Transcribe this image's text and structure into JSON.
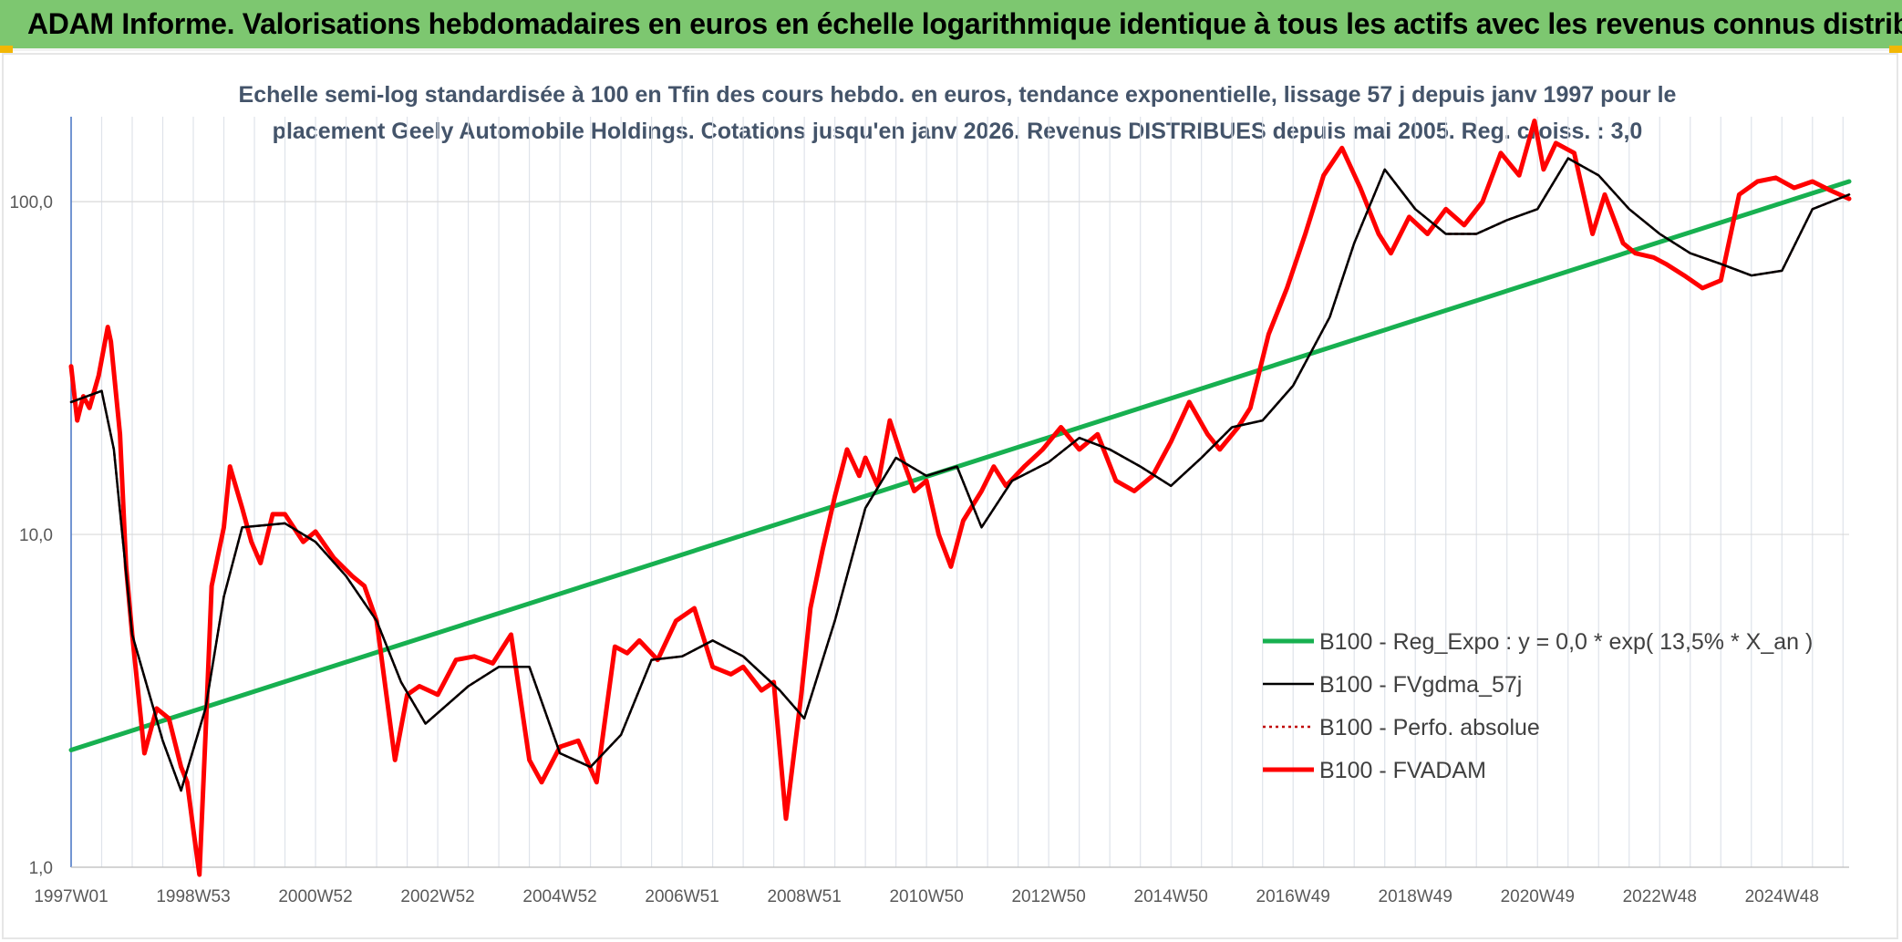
{
  "header": {
    "title": "ADAM Informe. Valorisations hebdomadaires en euros en échelle logarithmique identique à tous les actifs avec les revenus connus distribués"
  },
  "chart_data": {
    "type": "line",
    "title": "Echelle semi-log standardisée à 100 en Tfin des cours hebdo. en euros, tendance exponentielle, lissage 57 j depuis janv 1997 pour le placement Geely Automobile Holdings. Cotations jusqu'en janv 2026. Revenus DISTRIBUES depuis mai 2005. Reg. croiss. : 3,0",
    "title_lines": [
      "Echelle semi-log standardisée à 100 en Tfin des cours hebdo. en euros, tendance exponentielle, lissage 57 j depuis janv 1997 pour le",
      "placement Geely Automobile Holdings. Cotations jusqu'en janv 2026. Revenus DISTRIBUES depuis mai 2005. Reg. croiss. : 3,0"
    ],
    "y_scale": "log",
    "ylim": [
      1,
      180
    ],
    "y_ticks": [
      {
        "value": 1,
        "label": "1,0"
      },
      {
        "value": 10,
        "label": "10,0"
      },
      {
        "value": 100,
        "label": "100,0"
      }
    ],
    "xlim": [
      1997.0,
      2026.1
    ],
    "x_ticks": [
      {
        "value": 1997.0,
        "label": "1997W01"
      },
      {
        "value": 1999.0,
        "label": "1998W53"
      },
      {
        "value": 2001.0,
        "label": "2000W52"
      },
      {
        "value": 2003.0,
        "label": "2002W52"
      },
      {
        "value": 2005.0,
        "label": "2004W52"
      },
      {
        "value": 2007.0,
        "label": "2006W51"
      },
      {
        "value": 2009.0,
        "label": "2008W51"
      },
      {
        "value": 2011.0,
        "label": "2010W50"
      },
      {
        "value": 2013.0,
        "label": "2012W50"
      },
      {
        "value": 2015.0,
        "label": "2014W50"
      },
      {
        "value": 2017.0,
        "label": "2016W49"
      },
      {
        "value": 2019.0,
        "label": "2018W49"
      },
      {
        "value": 2021.0,
        "label": "2020W49"
      },
      {
        "value": 2023.0,
        "label": "2022W48"
      },
      {
        "value": 2025.0,
        "label": "2024W48"
      }
    ],
    "grid": "vertical",
    "legend_position": "bottom-right",
    "series": [
      {
        "name": "B100 - Reg_Expo : y = 0,0 * exp( 13,5% *  X_an )",
        "color": "#17b050",
        "style": "solid-thick",
        "x": [
          1997.0,
          2026.1
        ],
        "y": [
          2.25,
          115
        ]
      },
      {
        "name": "B100 - FVgdma_57j",
        "color": "#000000",
        "style": "solid-thin",
        "x": [
          1997.0,
          1997.5,
          1997.7,
          1998.0,
          1998.5,
          1998.8,
          1999.2,
          1999.5,
          1999.8,
          2000.5,
          2001.0,
          2001.5,
          2002.0,
          2002.4,
          2002.8,
          2003.5,
          2004.0,
          2004.5,
          2005.0,
          2005.5,
          2006.0,
          2006.5,
          2007.0,
          2007.5,
          2008.0,
          2008.6,
          2009.0,
          2009.5,
          2010.0,
          2010.5,
          2011.0,
          2011.5,
          2011.9,
          2012.4,
          2013.0,
          2013.5,
          2014.0,
          2014.5,
          2015.0,
          2015.5,
          2016.0,
          2016.5,
          2017.0,
          2017.6,
          2018.0,
          2018.5,
          2019.0,
          2019.5,
          2020.0,
          2020.5,
          2021.0,
          2021.5,
          2022.0,
          2022.5,
          2023.0,
          2023.5,
          2024.0,
          2024.5,
          2025.0,
          2025.5,
          2026.1
        ],
        "y": [
          25,
          27,
          18,
          5,
          2.4,
          1.7,
          3.0,
          6.5,
          10.5,
          10.8,
          9.5,
          7.5,
          5.5,
          3.6,
          2.7,
          3.5,
          4.0,
          4.0,
          2.2,
          2.0,
          2.5,
          4.2,
          4.3,
          4.8,
          4.3,
          3.4,
          2.8,
          5.5,
          12,
          17,
          15,
          16,
          10.5,
          14.5,
          16.5,
          19.5,
          18,
          16,
          14,
          17,
          21,
          22,
          28,
          45,
          75,
          125,
          95,
          80,
          80,
          88,
          95,
          135,
          120,
          95,
          80,
          70,
          65,
          60,
          62,
          95,
          105
        ]
      },
      {
        "name": "B100 - Perfo. absolue",
        "color": "#c00000",
        "style": "dotted",
        "x": [
          1997.0,
          1997.5,
          1997.7,
          1998.0,
          1998.5,
          1998.8,
          1999.2,
          1999.5,
          1999.8,
          2000.5,
          2001.0,
          2001.5,
          2002.0,
          2002.4,
          2002.8,
          2003.5,
          2004.0,
          2004.5,
          2005.0,
          2005.5,
          2006.0,
          2006.5,
          2007.0,
          2007.5,
          2008.0,
          2008.6,
          2009.0,
          2009.5,
          2010.0,
          2010.5,
          2011.0,
          2011.5,
          2011.9,
          2012.4,
          2013.0,
          2013.5,
          2014.0,
          2014.5,
          2015.0,
          2015.5,
          2016.0,
          2016.5,
          2017.0,
          2017.6,
          2018.0,
          2018.5,
          2019.0,
          2019.5,
          2020.0,
          2020.5,
          2021.0,
          2021.5,
          2022.0,
          2022.5,
          2023.0,
          2023.5,
          2024.0,
          2024.5,
          2025.0,
          2025.5,
          2026.1
        ],
        "y": [
          25,
          27,
          18,
          5,
          2.4,
          1.7,
          3.0,
          6.5,
          10.5,
          10.8,
          9.5,
          7.5,
          5.5,
          3.6,
          2.7,
          3.5,
          4.0,
          4.0,
          2.2,
          2.0,
          2.5,
          4.2,
          4.3,
          4.8,
          4.3,
          3.4,
          2.8,
          5.5,
          12,
          17,
          15,
          16,
          10.5,
          14.5,
          16.5,
          19.5,
          18,
          16,
          14,
          17,
          21,
          22,
          28,
          45,
          75,
          125,
          95,
          80,
          80,
          88,
          95,
          135,
          120,
          95,
          80,
          70,
          65,
          60,
          62,
          95,
          105
        ]
      },
      {
        "name": "B100 - FVADAM",
        "color": "#ff0000",
        "style": "solid-thick",
        "x": [
          1997.0,
          1997.1,
          1997.2,
          1997.3,
          1997.45,
          1997.6,
          1997.65,
          1997.8,
          1997.9,
          1998.0,
          1998.2,
          1998.4,
          1998.6,
          1998.8,
          1998.9,
          1999.0,
          1999.1,
          1999.2,
          1999.3,
          1999.5,
          1999.6,
          1999.8,
          1999.95,
          2000.1,
          2000.3,
          2000.5,
          2000.8,
          2001.0,
          2001.3,
          2001.6,
          2001.8,
          2002.0,
          2002.3,
          2002.5,
          2002.7,
          2003.0,
          2003.3,
          2003.6,
          2003.9,
          2004.2,
          2004.5,
          2004.7,
          2005.0,
          2005.3,
          2005.6,
          2005.9,
          2006.1,
          2006.3,
          2006.6,
          2006.9,
          2007.2,
          2007.5,
          2007.8,
          2008.0,
          2008.3,
          2008.5,
          2008.7,
          2008.95,
          2009.1,
          2009.3,
          2009.5,
          2009.7,
          2009.9,
          2010.0,
          2010.2,
          2010.4,
          2010.6,
          2010.8,
          2011.0,
          2011.2,
          2011.4,
          2011.6,
          2011.9,
          2012.1,
          2012.3,
          2012.6,
          2012.9,
          2013.2,
          2013.5,
          2013.8,
          2014.1,
          2014.4,
          2014.7,
          2015.0,
          2015.3,
          2015.6,
          2015.8,
          2016.1,
          2016.3,
          2016.6,
          2016.9,
          2017.2,
          2017.5,
          2017.8,
          2018.1,
          2018.4,
          2018.6,
          2018.9,
          2019.2,
          2019.5,
          2019.8,
          2020.1,
          2020.4,
          2020.7,
          2020.95,
          2021.1,
          2021.3,
          2021.6,
          2021.9,
          2022.1,
          2022.4,
          2022.6,
          2022.9,
          2023.1,
          2023.4,
          2023.7,
          2024.0,
          2024.3,
          2024.6,
          2024.9,
          2025.2,
          2025.5,
          2025.8,
          2026.1
        ],
        "y": [
          32,
          22,
          26,
          24,
          30,
          42,
          38,
          20,
          8,
          5,
          2.2,
          3.0,
          2.8,
          2.0,
          1.8,
          1.3,
          0.95,
          2.5,
          7.0,
          10.5,
          16,
          12,
          9.5,
          8.2,
          11.5,
          11.5,
          9.5,
          10.2,
          8.5,
          7.5,
          7.0,
          5.5,
          2.1,
          3.3,
          3.5,
          3.3,
          4.2,
          4.3,
          4.1,
          5.0,
          2.1,
          1.8,
          2.3,
          2.4,
          1.8,
          4.6,
          4.4,
          4.8,
          4.2,
          5.5,
          6.0,
          4.0,
          3.8,
          4.0,
          3.4,
          3.6,
          1.4,
          3.3,
          6.0,
          9.0,
          13,
          18,
          15,
          17,
          14,
          22,
          17,
          13.5,
          14.5,
          10,
          8,
          11,
          13.5,
          16,
          14,
          16,
          18,
          21,
          18,
          20,
          14.5,
          13.5,
          15,
          19,
          25,
          20,
          18,
          21,
          24,
          40,
          55,
          80,
          120,
          145,
          110,
          80,
          70,
          90,
          80,
          95,
          85,
          100,
          140,
          120,
          175,
          125,
          150,
          140,
          80,
          105,
          75,
          70,
          68,
          65,
          60,
          55,
          58,
          105,
          115,
          118,
          110,
          115,
          108,
          102
        ]
      }
    ]
  }
}
